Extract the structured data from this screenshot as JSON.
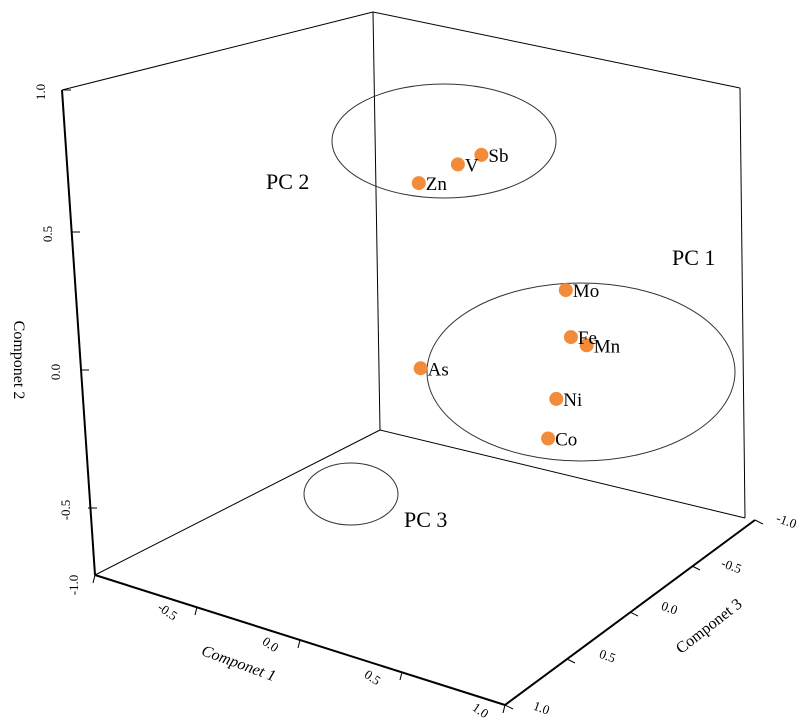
{
  "chart_data": {
    "type": "scatter",
    "projection": "3d",
    "title": "",
    "axes": {
      "x": {
        "label": "Componet 1",
        "range": [
          -1.0,
          1.0
        ],
        "ticks": [
          "-1.0",
          "-0.5",
          "0.0",
          "0.5",
          "1.0"
        ]
      },
      "y": {
        "label": "Componet 2",
        "range": [
          -1.0,
          1.0
        ],
        "ticks": [
          "-1.0",
          "-0.5",
          "0.0",
          "0.5",
          "1.0"
        ]
      },
      "z": {
        "label": "Componet 3",
        "range": [
          -1.0,
          1.0
        ],
        "ticks": [
          "-1.0",
          "-0.5",
          "0.0",
          "0.5",
          "1.0"
        ]
      }
    },
    "points": [
      {
        "label": "Sb",
        "x": -0.05,
        "y": 0.93,
        "z": -0.35
      },
      {
        "label": "Zn",
        "x": 0.2,
        "y": 0.85,
        "z": -0.2
      },
      {
        "label": "V",
        "x": -0.2,
        "y": 0.78,
        "z": -0.1
      },
      {
        "label": "Mn",
        "x": -0.12,
        "y": 0.1,
        "z": -0.85
      },
      {
        "label": "Fe",
        "x": -0.2,
        "y": 0.08,
        "z": -0.7
      },
      {
        "label": "Mo",
        "x": -0.55,
        "y": 0.12,
        "z": -0.4
      },
      {
        "label": "Ni",
        "x": 0.1,
        "y": -0.08,
        "z": -0.85
      },
      {
        "label": "Co",
        "x": 0.1,
        "y": -0.28,
        "z": -0.8
      },
      {
        "label": "As",
        "x": -0.6,
        "y": -0.45,
        "z": 0.45
      }
    ],
    "groups": [
      {
        "label": "PC 1",
        "members": [
          "Mn",
          "Fe",
          "Mo",
          "Ni",
          "Co"
        ]
      },
      {
        "label": "PC 2",
        "members": [
          "Sb",
          "Zn",
          "V"
        ]
      },
      {
        "label": "PC 3",
        "members": [
          "As"
        ]
      }
    ],
    "marker_color": "#F28C3A",
    "grid": false
  }
}
